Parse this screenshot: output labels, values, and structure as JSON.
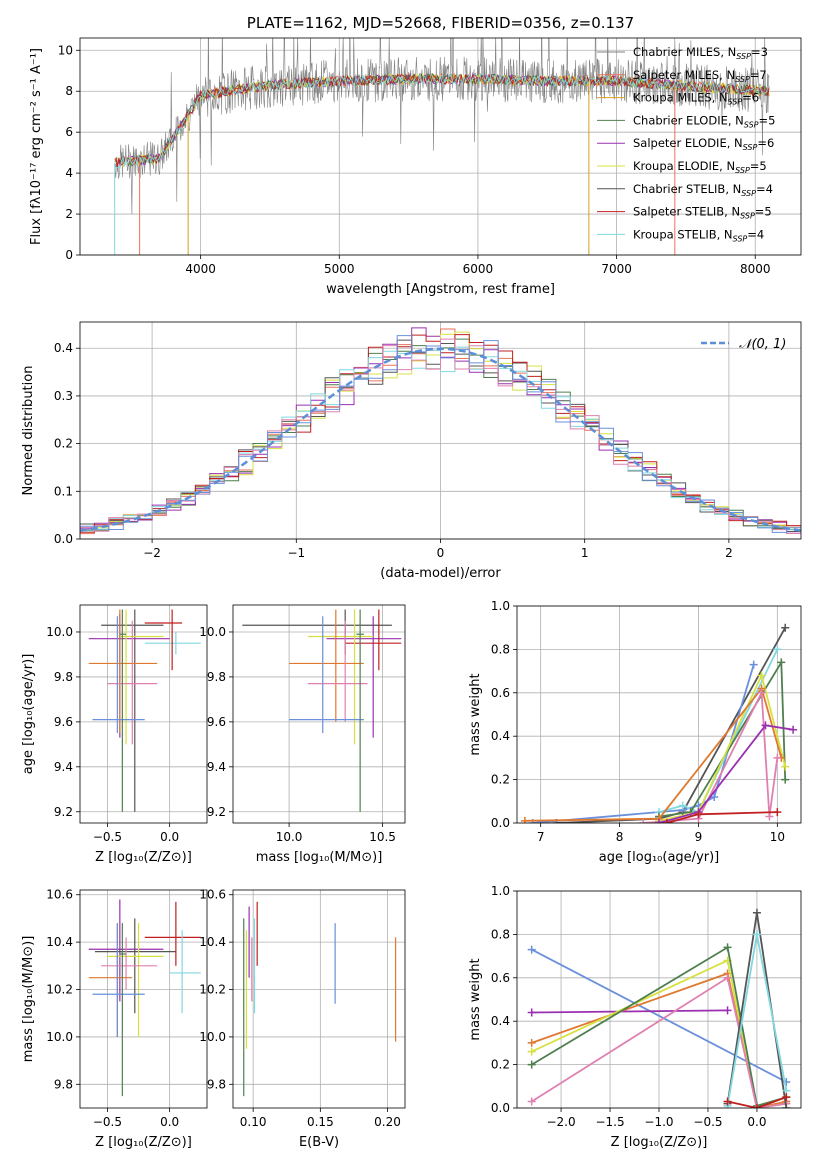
{
  "colors": {
    "Chabrier MILES": "#7f7f7f",
    "Salpeter MILES": "#e8735a",
    "Kroupa MILES": "#d4a020",
    "Chabrier ELODIE": "#4f7f4f",
    "Salpeter ELODIE": "#9a30b0",
    "Kroupa ELODIE": "#d8e040",
    "Chabrier STELIB": "#555555",
    "Salpeter STELIB": "#c02020",
    "Kroupa STELIB": "#80d8e0",
    "extra_pink": "#e080b0",
    "extra_blue": "#6a8fdc",
    "extra_orange": "#e07830"
  },
  "chart_data": [
    {
      "id": "spectrum",
      "type": "line",
      "title": "PLATE=1162, MJD=52668, FIBERID=0356, z=0.137",
      "xlabel": "wavelength [Angstrom, rest frame]",
      "ylabel": "Flux [fλ10⁻¹⁷ erg cm⁻² s⁻¹ A⁻¹]",
      "xlim": [
        3130,
        8330
      ],
      "ylim": [
        0,
        10.6
      ],
      "xticks": [
        4000,
        5000,
        6000,
        7000,
        8000
      ],
      "yticks": [
        0,
        2,
        4,
        6,
        8,
        10
      ],
      "legend_position": "top-right",
      "legend": [
        {
          "label": "Chabrier MILES, N",
          "sub": "SSP",
          "tail": "=3"
        },
        {
          "label": "Salpeter MILES, N",
          "sub": "SSP",
          "tail": "=7"
        },
        {
          "label": "Kroupa MILES, N",
          "sub": "SSP",
          "tail": "=6"
        },
        {
          "label": "Chabrier ELODIE, N",
          "sub": "SSP",
          "tail": "=5"
        },
        {
          "label": "Salpeter ELODIE, N",
          "sub": "SSP",
          "tail": "=6"
        },
        {
          "label": "Kroupa ELODIE, N",
          "sub": "SSP",
          "tail": "=5"
        },
        {
          "label": "Chabrier STELIB, N",
          "sub": "SSP",
          "tail": "=4"
        },
        {
          "label": "Salpeter STELIB, N",
          "sub": "SSP",
          "tail": "=5"
        },
        {
          "label": "Kroupa STELIB, N",
          "sub": "SSP",
          "tail": "=4"
        }
      ],
      "continuum": [
        [
          3380,
          4.5
        ],
        [
          3500,
          4.6
        ],
        [
          3700,
          4.7
        ],
        [
          3850,
          6.2
        ],
        [
          4000,
          7.8
        ],
        [
          4200,
          8.0
        ],
        [
          4500,
          8.3
        ],
        [
          5000,
          8.5
        ],
        [
          5500,
          8.6
        ],
        [
          6000,
          8.6
        ],
        [
          6500,
          8.5
        ],
        [
          7000,
          8.5
        ],
        [
          7400,
          8.3
        ],
        [
          8100,
          8.0
        ]
      ],
      "drops": [
        {
          "x": 3380,
          "series": "Kroupa STELIB"
        },
        {
          "x": 3560,
          "series": "Salpeter MILES"
        },
        {
          "x": 3910,
          "series": "Kroupa MILES"
        },
        {
          "x": 6800,
          "series": "Kroupa MILES"
        },
        {
          "x": 7420,
          "series": "Salpeter MILES"
        }
      ]
    },
    {
      "id": "residuals",
      "type": "bar",
      "xlabel": "(data-model)/error",
      "ylabel": "Normed distribution",
      "xlim": [
        -2.5,
        2.5
      ],
      "ylim": [
        0,
        0.455
      ],
      "xticks": [
        -2,
        -1,
        0,
        1,
        2
      ],
      "yticks": [
        0.0,
        0.1,
        0.2,
        0.3,
        0.4
      ],
      "legend_position": "top-right",
      "legend": [
        {
          "label": "𝒩(0, 1)"
        }
      ],
      "gaussian": {
        "mean": 0,
        "sigma": 1
      }
    },
    {
      "id": "z-age",
      "type": "scatter",
      "xlabel": "Z [log₁₀(Z/Z⊙)]",
      "ylabel": "age  [log₁₀(age/yr)]",
      "xlim": [
        -0.72,
        0.3
      ],
      "ylim": [
        9.15,
        10.12
      ],
      "xticks": [
        -0.5,
        0.0
      ],
      "yticks": [
        9.2,
        9.4,
        9.6,
        9.8,
        10.0
      ],
      "points": [
        {
          "c": "Chabrier STELIB",
          "x": -0.28,
          "xe": [
            -0.55,
            -0.05
          ],
          "y": 10.03,
          "ye": [
            9.2,
            10.1
          ]
        },
        {
          "c": "Salpeter ELODIE",
          "x": -0.4,
          "xe": [
            -0.65,
            0.0
          ],
          "y": 9.97,
          "ye": [
            9.53,
            10.08
          ]
        },
        {
          "c": "Kroupa STELIB",
          "x": 0.05,
          "xe": [
            -0.2,
            0.25
          ],
          "y": 9.95,
          "ye": [
            9.9,
            10.0
          ]
        },
        {
          "c": "Kroupa ELODIE",
          "x": -0.35,
          "xe": [
            -0.4,
            -0.05
          ],
          "y": 9.98,
          "ye": [
            9.5,
            10.1
          ]
        },
        {
          "c": "extra_orange",
          "x": -0.4,
          "xe": [
            -0.65,
            -0.1
          ],
          "y": 9.86,
          "ye": [
            9.55,
            10.1
          ]
        },
        {
          "c": "extra_pink",
          "x": -0.3,
          "xe": [
            -0.5,
            -0.1
          ],
          "y": 9.77,
          "ye": [
            9.5,
            10.05
          ]
        },
        {
          "c": "extra_blue",
          "x": -0.42,
          "xe": [
            -0.62,
            -0.2
          ],
          "y": 9.61,
          "ye": [
            9.55,
            10.07
          ]
        },
        {
          "c": "Chabrier ELODIE",
          "x": -0.38,
          "xe": [
            -0.4,
            -0.35
          ],
          "y": 9.99,
          "ye": [
            9.2,
            10.1
          ]
        },
        {
          "c": "Salpeter STELIB",
          "x": 0.02,
          "xe": [
            -0.2,
            0.1
          ],
          "y": 10.04,
          "ye": [
            9.83,
            10.1
          ]
        }
      ]
    },
    {
      "id": "mass-age",
      "type": "scatter",
      "xlabel": "mass [log₁₀(M/M⊙)]",
      "ylabel": "",
      "xlim": [
        9.7,
        10.62
      ],
      "ylim": [
        9.15,
        10.12
      ],
      "xticks": [
        10.0,
        10.5
      ],
      "yticks": [
        9.2,
        9.4,
        9.6,
        9.8,
        10.0
      ],
      "points": [
        {
          "c": "Chabrier STELIB",
          "x": 10.3,
          "xe": [
            9.75,
            10.55
          ],
          "y": 10.03,
          "ye": [
            9.9,
            10.1
          ]
        },
        {
          "c": "Salpeter ELODIE",
          "x": 10.45,
          "xe": [
            10.2,
            10.6
          ],
          "y": 9.97,
          "ye": [
            9.53,
            10.07
          ]
        },
        {
          "c": "Salpeter STELIB",
          "x": 10.48,
          "xe": [
            10.3,
            10.6
          ],
          "y": 9.95,
          "ye": [
            9.83,
            10.1
          ]
        },
        {
          "c": "Kroupa ELODIE",
          "x": 10.35,
          "xe": [
            10.1,
            10.45
          ],
          "y": 9.98,
          "ye": [
            9.5,
            10.1
          ]
        },
        {
          "c": "extra_orange",
          "x": 10.25,
          "xe": [
            10.0,
            10.4
          ],
          "y": 9.86,
          "ye": [
            9.6,
            10.1
          ]
        },
        {
          "c": "extra_pink",
          "x": 10.3,
          "xe": [
            10.1,
            10.42
          ],
          "y": 9.77,
          "ye": [
            9.6,
            10.05
          ]
        },
        {
          "c": "extra_blue",
          "x": 10.18,
          "xe": [
            10.0,
            10.4
          ],
          "y": 9.61,
          "ye": [
            9.55,
            10.07
          ]
        },
        {
          "c": "Chabrier ELODIE",
          "x": 10.38,
          "xe": [
            10.36,
            10.4
          ],
          "y": 9.99,
          "ye": [
            9.2,
            10.1
          ]
        }
      ]
    },
    {
      "id": "mw-age",
      "type": "line",
      "xlabel": "age  [log₁₀(age/yr)]",
      "ylabel": "mass weight",
      "xlim": [
        6.7,
        10.3
      ],
      "ylim": [
        0,
        1.0
      ],
      "xticks": [
        7,
        8,
        9,
        10
      ],
      "yticks": [
        0.0,
        0.2,
        0.4,
        0.6,
        0.8,
        1.0
      ],
      "series": [
        {
          "c": "Chabrier STELIB",
          "x": [
            7.2,
            8.5,
            8.8,
            10.1
          ],
          "y": [
            0.0,
            0.02,
            0.05,
            0.9
          ]
        },
        {
          "c": "extra_blue",
          "x": [
            6.9,
            8.8,
            9.0,
            9.2,
            9.7
          ],
          "y": [
            0.0,
            0.06,
            0.08,
            0.12,
            0.73
          ]
        },
        {
          "c": "Kroupa STELIB",
          "x": [
            8.5,
            8.8,
            9.0,
            10.0
          ],
          "y": [
            0.05,
            0.08,
            0.05,
            0.8
          ]
        },
        {
          "c": "Chabrier ELODIE",
          "x": [
            8.5,
            8.9,
            10.05,
            10.1
          ],
          "y": [
            0.03,
            0.05,
            0.74,
            0.2
          ]
        },
        {
          "c": "Kroupa ELODIE",
          "x": [
            8.5,
            9.0,
            9.8,
            10.1
          ],
          "y": [
            0.01,
            0.05,
            0.68,
            0.26
          ]
        },
        {
          "c": "extra_orange",
          "x": [
            6.8,
            8.5,
            9.8,
            10.05
          ],
          "y": [
            0.01,
            0.02,
            0.62,
            0.3
          ]
        },
        {
          "c": "extra_pink",
          "x": [
            8.3,
            9.0,
            9.8,
            9.9,
            10.0
          ],
          "y": [
            0.0,
            0.02,
            0.6,
            0.03,
            0.3
          ]
        },
        {
          "c": "Salpeter ELODIE",
          "x": [
            8.5,
            9.0,
            9.85,
            10.2
          ],
          "y": [
            0.0,
            0.05,
            0.45,
            0.43
          ]
        },
        {
          "c": "Salpeter STELIB",
          "x": [
            8.6,
            9.0,
            10.0
          ],
          "y": [
            0.0,
            0.04,
            0.05
          ]
        }
      ]
    },
    {
      "id": "z-mass",
      "type": "scatter",
      "xlabel": "Z [log₁₀(Z/Z⊙)]",
      "ylabel": "mass [log₁₀(M/M⊙)]",
      "xlim": [
        -0.72,
        0.3
      ],
      "ylim": [
        9.7,
        10.62
      ],
      "xticks": [
        -0.5,
        0.0
      ],
      "yticks": [
        9.8,
        10.0,
        10.2,
        10.4,
        10.6
      ],
      "points": [
        {
          "c": "Salpeter ELODIE",
          "x": -0.4,
          "xe": [
            -0.65,
            -0.05
          ],
          "y": 10.37,
          "ye": [
            10.15,
            10.58
          ]
        },
        {
          "c": "Chabrier STELIB",
          "x": -0.28,
          "xe": [
            -0.6,
            0.05
          ],
          "y": 10.36,
          "ye": [
            10.1,
            10.5
          ]
        },
        {
          "c": "Kroupa ELODIE",
          "x": -0.25,
          "xe": [
            -0.5,
            -0.05
          ],
          "y": 10.34,
          "ye": [
            10.0,
            10.48
          ]
        },
        {
          "c": "extra_pink",
          "x": -0.35,
          "xe": [
            -0.55,
            -0.1
          ],
          "y": 10.3,
          "ye": [
            10.2,
            10.42
          ]
        },
        {
          "c": "extra_orange",
          "x": -0.42,
          "xe": [
            -0.65,
            -0.3
          ],
          "y": 10.25,
          "ye": [
            10.0,
            10.48
          ]
        },
        {
          "c": "extra_blue",
          "x": -0.42,
          "xe": [
            -0.62,
            -0.2
          ],
          "y": 10.18,
          "ye": [
            10.0,
            10.48
          ]
        },
        {
          "c": "Salpeter STELIB",
          "x": 0.05,
          "xe": [
            -0.2,
            0.25
          ],
          "y": 10.42,
          "ye": [
            10.3,
            10.57
          ]
        },
        {
          "c": "Kroupa STELIB",
          "x": 0.1,
          "xe": [
            0.0,
            0.25
          ],
          "y": 10.27,
          "ye": [
            10.1,
            10.45
          ]
        },
        {
          "c": "Chabrier ELODIE",
          "x": -0.38,
          "xe": [
            -0.4,
            -0.35
          ],
          "y": 10.35,
          "ye": [
            9.75,
            10.48
          ]
        }
      ]
    },
    {
      "id": "ebv-mass",
      "type": "scatter",
      "xlabel": "E(B-V)",
      "ylabel": "",
      "xlim": [
        0.085,
        0.213
      ],
      "ylim": [
        9.7,
        10.62
      ],
      "xticks": [
        0.1,
        0.15,
        0.2
      ],
      "yticks": [
        9.8,
        10.0,
        10.2,
        10.4,
        10.6
      ],
      "bars": [
        {
          "c": "Chabrier ELODIE",
          "x": 0.093,
          "ye": [
            9.75,
            10.5
          ]
        },
        {
          "c": "Kroupa ELODIE",
          "x": 0.095,
          "ye": [
            9.95,
            10.45
          ]
        },
        {
          "c": "Salpeter ELODIE",
          "x": 0.097,
          "ye": [
            10.25,
            10.55
          ]
        },
        {
          "c": "Kroupa STELIB",
          "x": 0.101,
          "ye": [
            10.1,
            10.5
          ]
        },
        {
          "c": "Salpeter STELIB",
          "x": 0.103,
          "ye": [
            10.3,
            10.57
          ]
        },
        {
          "c": "extra_pink",
          "x": 0.099,
          "ye": [
            10.15,
            10.42
          ]
        },
        {
          "c": "extra_blue",
          "x": 0.161,
          "ye": [
            10.14,
            10.48
          ]
        },
        {
          "c": "extra_orange",
          "x": 0.206,
          "ye": [
            9.98,
            10.42
          ]
        }
      ]
    },
    {
      "id": "mw-z",
      "type": "line",
      "xlabel": "Z [log₁₀(Z/Z⊙)]",
      "ylabel": "mass weight",
      "xlim": [
        -2.45,
        0.45
      ],
      "ylim": [
        0,
        1.0
      ],
      "xticks": [
        -2.0,
        -1.5,
        -1.0,
        -0.5,
        0.0
      ],
      "yticks": [
        0.0,
        0.2,
        0.4,
        0.6,
        0.8,
        1.0
      ],
      "series": [
        {
          "c": "extra_blue",
          "x": [
            -2.3,
            0.3
          ],
          "y": [
            0.73,
            0.12
          ]
        },
        {
          "c": "Salpeter ELODIE",
          "x": [
            -2.3,
            -0.3
          ],
          "y": [
            0.44,
            0.45
          ]
        },
        {
          "c": "extra_orange",
          "x": [
            -2.3,
            -0.3,
            0.0,
            0.3
          ],
          "y": [
            0.3,
            0.62,
            0.0,
            0.03
          ]
        },
        {
          "c": "Kroupa ELODIE",
          "x": [
            -2.3,
            -0.3,
            0.0,
            0.3
          ],
          "y": [
            0.26,
            0.68,
            0.0,
            0.02
          ]
        },
        {
          "c": "Chabrier ELODIE",
          "x": [
            -2.3,
            -0.3,
            0.0,
            0.3
          ],
          "y": [
            0.2,
            0.74,
            0.01,
            0.05
          ]
        },
        {
          "c": "extra_pink",
          "x": [
            -2.3,
            -0.3,
            0.0,
            0.3
          ],
          "y": [
            0.03,
            0.6,
            0.0,
            0.02
          ]
        },
        {
          "c": "Chabrier STELIB",
          "x": [
            -0.3,
            0.0,
            0.3
          ],
          "y": [
            0.02,
            0.9,
            0.0
          ]
        },
        {
          "c": "Kroupa STELIB",
          "x": [
            -0.3,
            0.0,
            0.3
          ],
          "y": [
            0.01,
            0.8,
            0.08
          ]
        },
        {
          "c": "Salpeter STELIB",
          "x": [
            -0.3,
            0.0,
            0.3
          ],
          "y": [
            0.03,
            0.0,
            0.05
          ]
        }
      ]
    }
  ]
}
